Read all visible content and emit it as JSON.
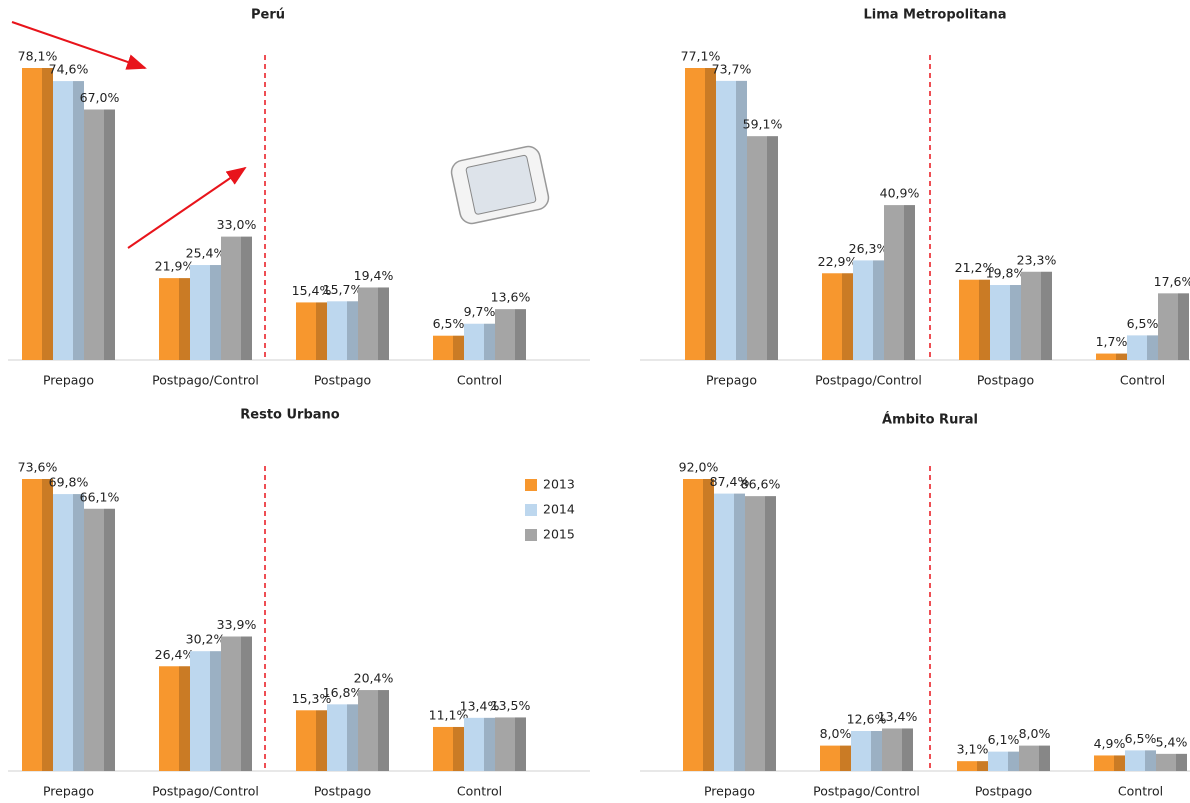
{
  "chart_data": [
    {
      "type": "bar",
      "title": "Perú",
      "categories": [
        "Prepago",
        "Postpago/Control",
        "Postpago",
        "Control"
      ],
      "series": [
        {
          "color": "#f7972e",
          "values": [
            78.1,
            21.9,
            15.4,
            6.5
          ],
          "value_labels": [
            "78,1%",
            "21,9%",
            "15,4%",
            "6,5%"
          ]
        },
        {
          "color": "#bdd7ee",
          "values": [
            74.6,
            25.4,
            15.7,
            9.7
          ],
          "value_labels": [
            "74,6%",
            "25,4%",
            "15,7%",
            "9,7%"
          ]
        },
        {
          "color": "#a5a5a5",
          "values": [
            67.0,
            33.0,
            19.4,
            13.6
          ],
          "value_labels": [
            "67,0%",
            "33,0%",
            "19,4%",
            "13,6%"
          ]
        }
      ]
    },
    {
      "type": "bar",
      "title": "Lima Metropolitana",
      "categories": [
        "Prepago",
        "Postpago/Control",
        "Postpago",
        "Control"
      ],
      "series": [
        {
          "color": "#f7972e",
          "values": [
            77.1,
            22.9,
            21.2,
            1.7
          ],
          "value_labels": [
            "77,1%",
            "22,9%",
            "21,2%",
            "1,7%"
          ]
        },
        {
          "color": "#bdd7ee",
          "values": [
            73.7,
            26.3,
            19.8,
            6.5
          ],
          "value_labels": [
            "73,7%",
            "26,3%",
            "19,8%",
            "6,5%"
          ]
        },
        {
          "color": "#a5a5a5",
          "values": [
            59.1,
            40.9,
            23.3,
            17.6
          ],
          "value_labels": [
            "59,1%",
            "40,9%",
            "23,3%",
            "17,6%"
          ]
        }
      ]
    },
    {
      "type": "bar",
      "title": "Resto Urbano",
      "legend": "upper right",
      "categories": [
        "Prepago",
        "Postpago/Control",
        "Postpago",
        "Control"
      ],
      "series": [
        {
          "name": "2013",
          "color": "#f7972e",
          "values": [
            73.6,
            26.4,
            15.3,
            11.1
          ],
          "value_labels": [
            "73,6%",
            "26,4%",
            "15,3%",
            "11,1%"
          ]
        },
        {
          "name": "2014",
          "color": "#bdd7ee",
          "values": [
            69.8,
            30.2,
            16.8,
            13.4
          ],
          "value_labels": [
            "69,8%",
            "30,2%",
            "16,8%",
            "13,4%"
          ]
        },
        {
          "name": "2015",
          "color": "#a5a5a5",
          "values": [
            66.1,
            33.9,
            20.4,
            13.5
          ],
          "value_labels": [
            "66,1%",
            "33,9%",
            "20,4%",
            "13,5%"
          ]
        }
      ]
    },
    {
      "type": "bar",
      "title": "Ámbito Rural",
      "categories": [
        "Prepago",
        "Postpago/Control",
        "Postpago",
        "Control"
      ],
      "series": [
        {
          "color": "#f7972e",
          "values": [
            92.0,
            8.0,
            3.1,
            4.9
          ],
          "value_labels": [
            "92,0%",
            "8,0%",
            "3,1%",
            "4,9%"
          ]
        },
        {
          "color": "#bdd7ee",
          "values": [
            87.4,
            12.6,
            6.1,
            6.5
          ],
          "value_labels": [
            "87,4%",
            "12,6%",
            "6,1%",
            "6,5%"
          ]
        },
        {
          "color": "#a5a5a5",
          "values": [
            86.6,
            13.4,
            8.0,
            5.4
          ],
          "value_labels": [
            "86,6%",
            "13,4%",
            "8,0%",
            "5,4%"
          ]
        }
      ]
    }
  ]
}
